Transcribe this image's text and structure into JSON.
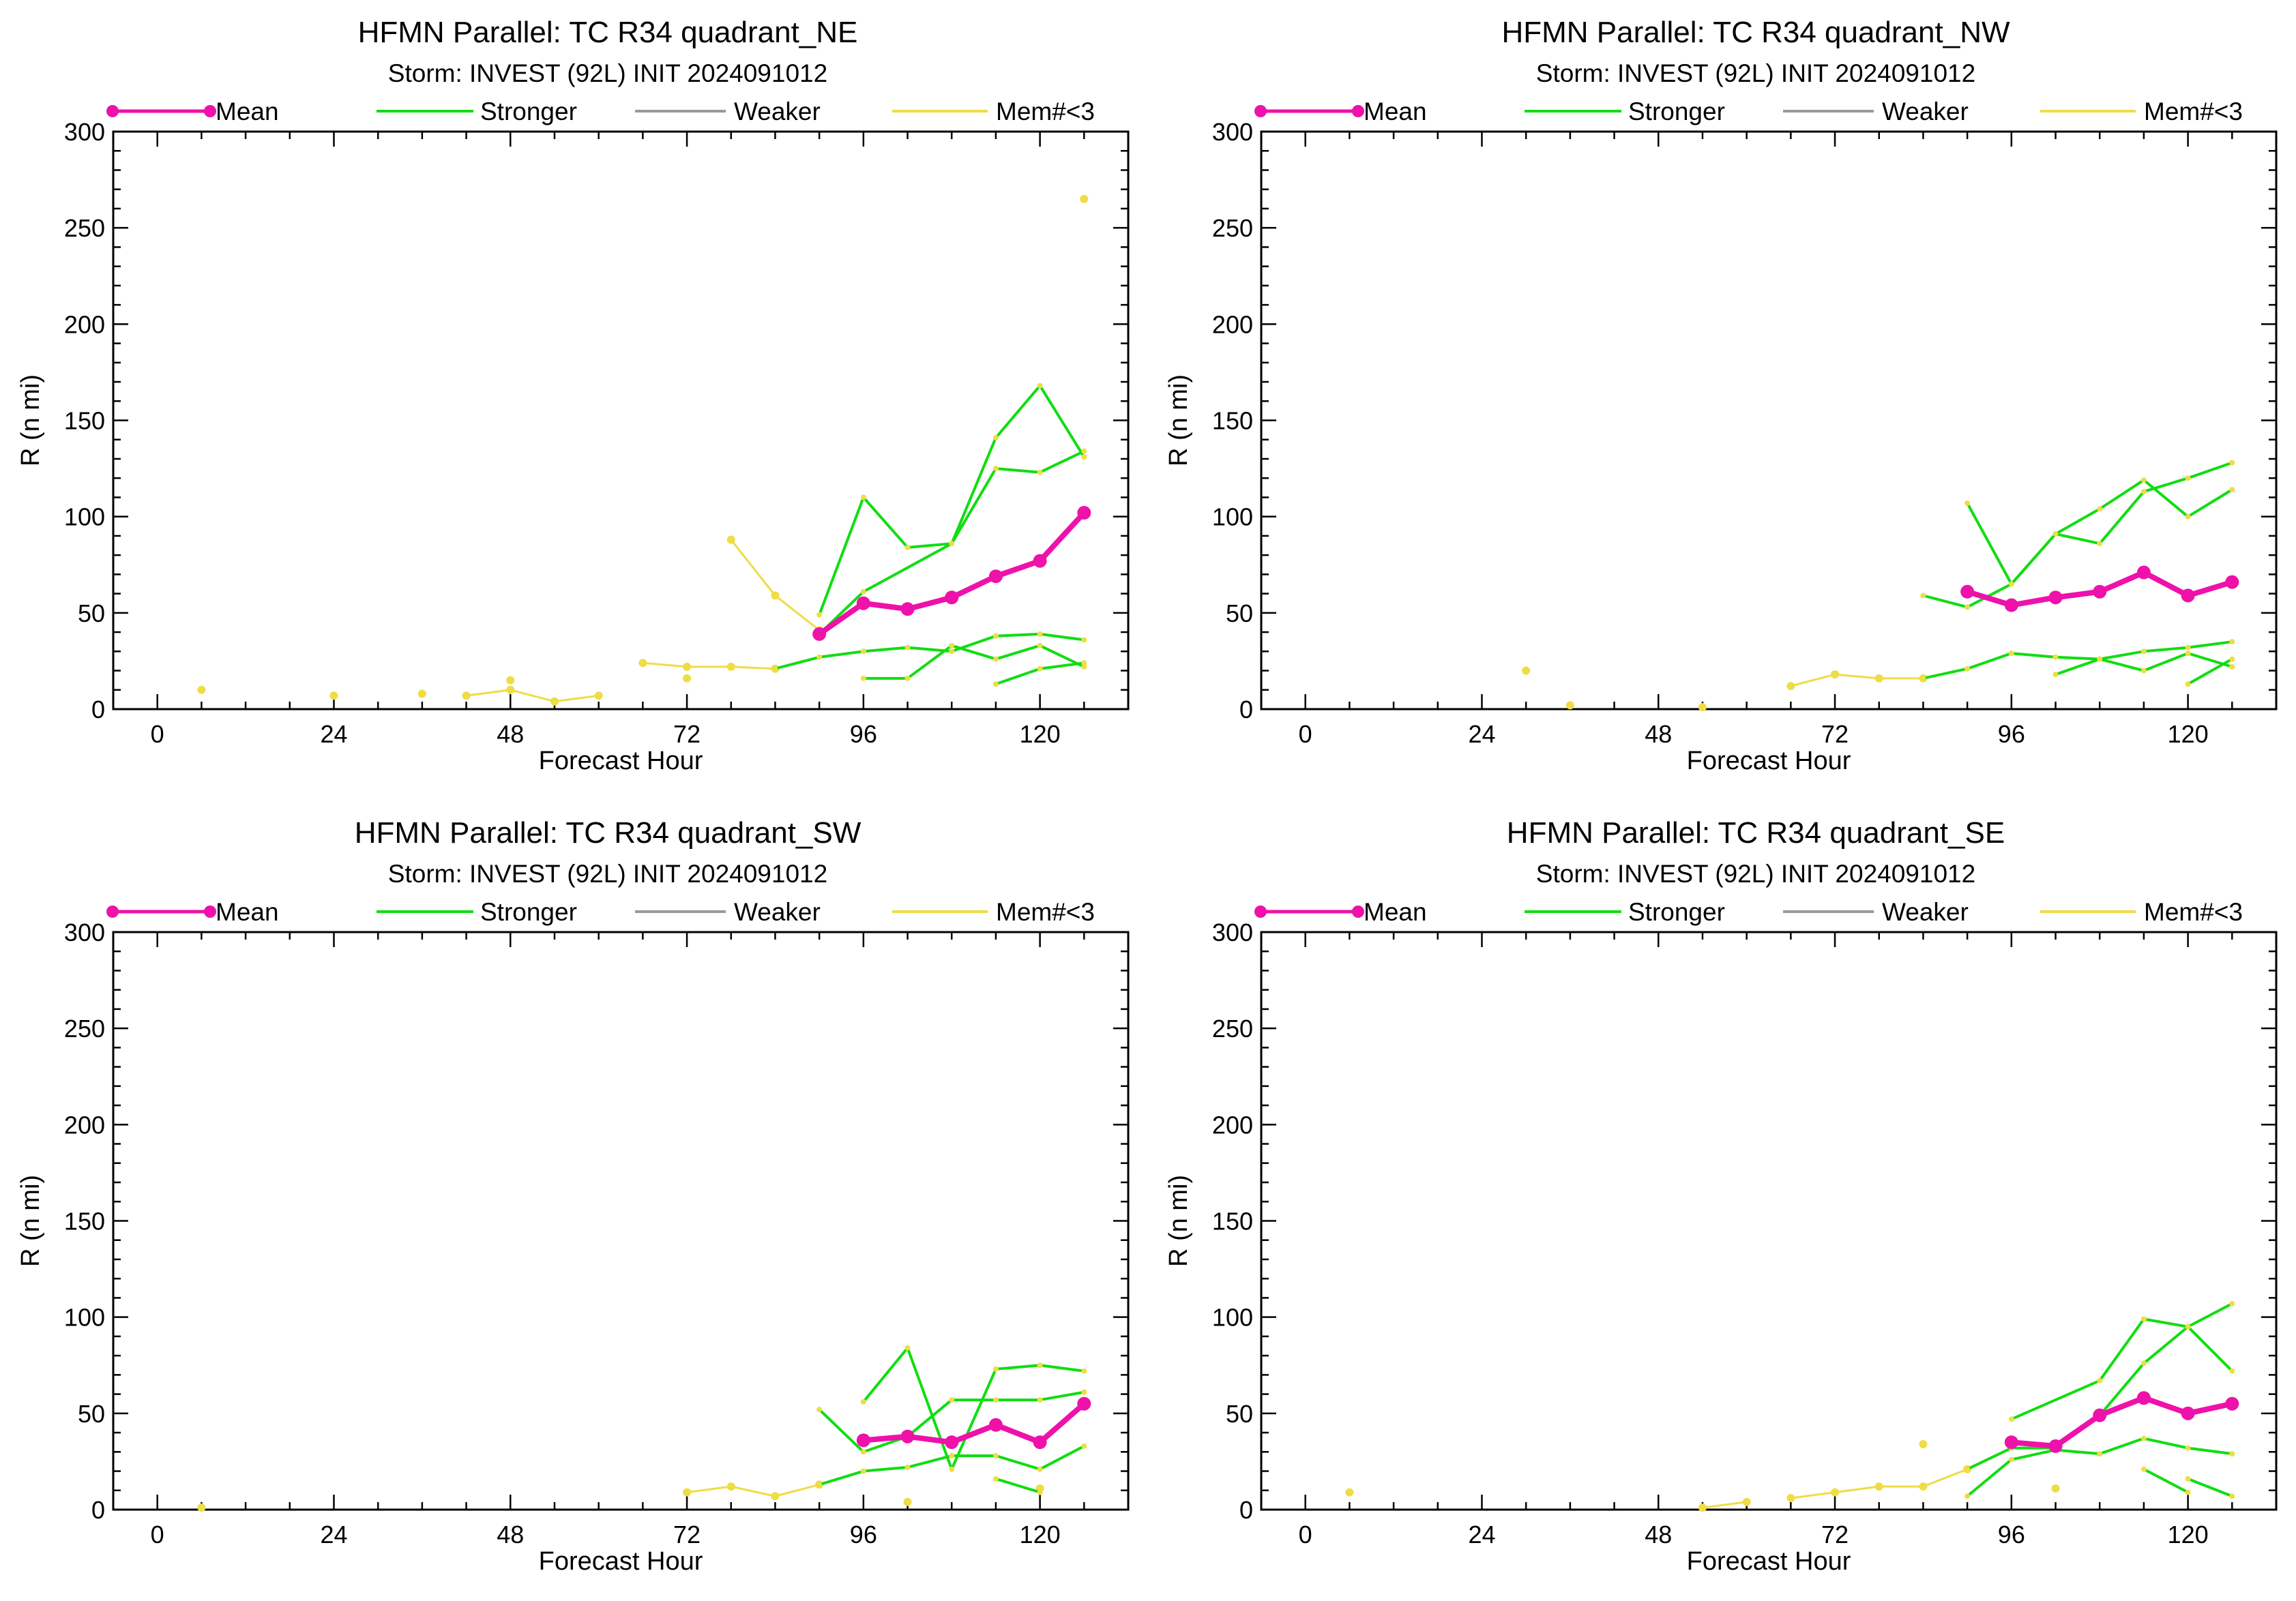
{
  "colors": {
    "mean": "#ee11aa",
    "stronger": "#11dd11",
    "weaker": "#999999",
    "few_members": "#eedd44",
    "axis": "#000000"
  },
  "legend": {
    "mean": "Mean",
    "stronger": "Stronger",
    "weaker": "Weaker",
    "few_members": "Mem#<3"
  },
  "chart_data": [
    {
      "type": "line",
      "title": "HFMN Parallel: TC  R34 quadrant_NE",
      "subtitle": "Storm: INVEST (92L) INIT 2024091012",
      "xlabel": "Forecast Hour",
      "ylabel": "R (n mi)",
      "xlim": [
        -6,
        132
      ],
      "ylim": [
        0,
        300
      ],
      "xticks": [
        0,
        24,
        48,
        72,
        96,
        120
      ],
      "yticks": [
        0,
        50,
        100,
        150,
        200,
        250,
        300
      ],
      "series": [
        {
          "role": "mean",
          "x": [
            90,
            96,
            102,
            108,
            114,
            120,
            126
          ],
          "y": [
            39,
            55,
            52,
            58,
            69,
            77,
            102
          ]
        },
        {
          "role": "stronger",
          "x": [
            90,
            96,
            102,
            108,
            114,
            120,
            126
          ],
          "y": [
            49,
            110,
            84,
            86,
            141,
            168,
            131
          ]
        },
        {
          "role": "stronger",
          "x": [
            90,
            96,
            108,
            114,
            120,
            126
          ],
          "y": [
            39,
            61,
            86,
            125,
            123,
            134
          ]
        },
        {
          "role": "stronger",
          "x": [
            84,
            90,
            96,
            102,
            108,
            114,
            120,
            126
          ],
          "y": [
            21,
            27,
            30,
            32,
            30,
            38,
            39,
            36
          ]
        },
        {
          "role": "stronger",
          "x": [
            96,
            102,
            108,
            114,
            120,
            126
          ],
          "y": [
            16,
            16,
            33,
            26,
            33,
            22
          ]
        },
        {
          "role": "stronger",
          "x": [
            114,
            120,
            126
          ],
          "y": [
            13,
            21,
            24
          ]
        },
        {
          "role": "few_members",
          "x": [
            78,
            84,
            90
          ],
          "y": [
            88,
            59,
            41
          ]
        },
        {
          "role": "few_members",
          "x": [
            66,
            72,
            78,
            84
          ],
          "y": [
            24,
            22,
            22,
            21
          ]
        },
        {
          "role": "few_members",
          "x": [
            42,
            48,
            54,
            60
          ],
          "y": [
            7,
            10,
            4,
            7
          ]
        },
        {
          "role": "few_members",
          "x": [
            6
          ],
          "y": [
            10
          ]
        },
        {
          "role": "few_members",
          "x": [
            24
          ],
          "y": [
            7
          ]
        },
        {
          "role": "few_members",
          "x": [
            36
          ],
          "y": [
            8
          ]
        },
        {
          "role": "few_members",
          "x": [
            48
          ],
          "y": [
            15
          ]
        },
        {
          "role": "few_members",
          "x": [
            72
          ],
          "y": [
            16
          ]
        },
        {
          "role": "few_members",
          "x": [
            126
          ],
          "y": [
            265
          ]
        }
      ]
    },
    {
      "type": "line",
      "title": "HFMN Parallel: TC  R34 quadrant_NW",
      "subtitle": "Storm: INVEST (92L) INIT 2024091012",
      "xlabel": "Forecast Hour",
      "ylabel": "R (n mi)",
      "xlim": [
        -6,
        132
      ],
      "ylim": [
        0,
        300
      ],
      "xticks": [
        0,
        24,
        48,
        72,
        96,
        120
      ],
      "yticks": [
        0,
        50,
        100,
        150,
        200,
        250,
        300
      ],
      "series": [
        {
          "role": "mean",
          "x": [
            90,
            96,
            102,
            108,
            114,
            120,
            126
          ],
          "y": [
            61,
            54,
            58,
            61,
            71,
            59,
            66
          ]
        },
        {
          "role": "stronger",
          "x": [
            90,
            96,
            102,
            108,
            114,
            120,
            126
          ],
          "y": [
            107,
            65,
            91,
            104,
            119,
            100,
            114
          ]
        },
        {
          "role": "stronger",
          "x": [
            84,
            90,
            96,
            102,
            108,
            114,
            120,
            126
          ],
          "y": [
            59,
            53,
            65,
            91,
            86,
            113,
            120,
            128
          ]
        },
        {
          "role": "stronger",
          "x": [
            84,
            90,
            96,
            102,
            108,
            114,
            120,
            126
          ],
          "y": [
            16,
            21,
            29,
            27,
            26,
            30,
            32,
            35
          ]
        },
        {
          "role": "stronger",
          "x": [
            102,
            108,
            114,
            120,
            126
          ],
          "y": [
            18,
            26,
            20,
            29,
            22
          ]
        },
        {
          "role": "stronger",
          "x": [
            120,
            126
          ],
          "y": [
            13,
            26
          ]
        },
        {
          "role": "few_members",
          "x": [
            66,
            72,
            78,
            84
          ],
          "y": [
            12,
            18,
            16,
            16
          ]
        },
        {
          "role": "few_members",
          "x": [
            30
          ],
          "y": [
            20
          ]
        },
        {
          "role": "few_members",
          "x": [
            36
          ],
          "y": [
            2
          ]
        },
        {
          "role": "few_members",
          "x": [
            54
          ],
          "y": [
            1
          ]
        }
      ]
    },
    {
      "type": "line",
      "title": "HFMN Parallel: TC  R34 quadrant_SW",
      "subtitle": "Storm: INVEST (92L) INIT 2024091012",
      "xlabel": "Forecast Hour",
      "ylabel": "R (n mi)",
      "xlim": [
        -6,
        132
      ],
      "ylim": [
        0,
        300
      ],
      "xticks": [
        0,
        24,
        48,
        72,
        96,
        120
      ],
      "yticks": [
        0,
        50,
        100,
        150,
        200,
        250,
        300
      ],
      "series": [
        {
          "role": "mean",
          "x": [
            96,
            102,
            108,
            114,
            120,
            126
          ],
          "y": [
            36,
            38,
            35,
            44,
            35,
            55
          ]
        },
        {
          "role": "stronger",
          "x": [
            96,
            102,
            108,
            114,
            120,
            126
          ],
          "y": [
            56,
            84,
            21,
            73,
            75,
            72
          ]
        },
        {
          "role": "stronger",
          "x": [
            90,
            96,
            102,
            108,
            114,
            120,
            126
          ],
          "y": [
            52,
            30,
            38,
            57,
            57,
            57,
            61
          ]
        },
        {
          "role": "stronger",
          "x": [
            90,
            96,
            102,
            108,
            114,
            120,
            126
          ],
          "y": [
            13,
            20,
            22,
            28,
            28,
            21,
            33
          ]
        },
        {
          "role": "stronger",
          "x": [
            114,
            120
          ],
          "y": [
            16,
            9
          ]
        },
        {
          "role": "few_members",
          "x": [
            72,
            78,
            84,
            90
          ],
          "y": [
            9,
            12,
            7,
            13
          ]
        },
        {
          "role": "few_members",
          "x": [
            6
          ],
          "y": [
            1
          ]
        },
        {
          "role": "few_members",
          "x": [
            102
          ],
          "y": [
            4
          ]
        },
        {
          "role": "few_members",
          "x": [
            120
          ],
          "y": [
            11
          ]
        }
      ]
    },
    {
      "type": "line",
      "title": "HFMN Parallel: TC  R34 quadrant_SE",
      "subtitle": "Storm: INVEST (92L) INIT 2024091012",
      "xlabel": "Forecast Hour",
      "ylabel": "R (n mi)",
      "xlim": [
        -6,
        132
      ],
      "ylim": [
        0,
        300
      ],
      "xticks": [
        0,
        24,
        48,
        72,
        96,
        120
      ],
      "yticks": [
        0,
        50,
        100,
        150,
        200,
        250,
        300
      ],
      "series": [
        {
          "role": "mean",
          "x": [
            96,
            102,
            108,
            114,
            120,
            126
          ],
          "y": [
            35,
            33,
            49,
            58,
            50,
            55
          ]
        },
        {
          "role": "stronger",
          "x": [
            96,
            108,
            114,
            120,
            126
          ],
          "y": [
            47,
            67,
            99,
            95,
            72
          ]
        },
        {
          "role": "stronger",
          "x": [
            90,
            96,
            102,
            108,
            114,
            120,
            126
          ],
          "y": [
            21,
            32,
            32,
            49,
            76,
            95,
            107
          ]
        },
        {
          "role": "stronger",
          "x": [
            90,
            96,
            102,
            108,
            114,
            120,
            126
          ],
          "y": [
            7,
            26,
            31,
            29,
            37,
            32,
            29
          ]
        },
        {
          "role": "stronger",
          "x": [
            114,
            120
          ],
          "y": [
            21,
            9
          ]
        },
        {
          "role": "stronger",
          "x": [
            120,
            126
          ],
          "y": [
            16,
            7
          ]
        },
        {
          "role": "few_members",
          "x": [
            54,
            60
          ],
          "y": [
            1,
            4
          ]
        },
        {
          "role": "few_members",
          "x": [
            66,
            72,
            78,
            84,
            90
          ],
          "y": [
            6,
            9,
            12,
            12,
            21
          ]
        },
        {
          "role": "few_members",
          "x": [
            6
          ],
          "y": [
            9
          ]
        },
        {
          "role": "few_members",
          "x": [
            84
          ],
          "y": [
            34
          ]
        },
        {
          "role": "few_members",
          "x": [
            102
          ],
          "y": [
            11
          ]
        }
      ]
    }
  ]
}
